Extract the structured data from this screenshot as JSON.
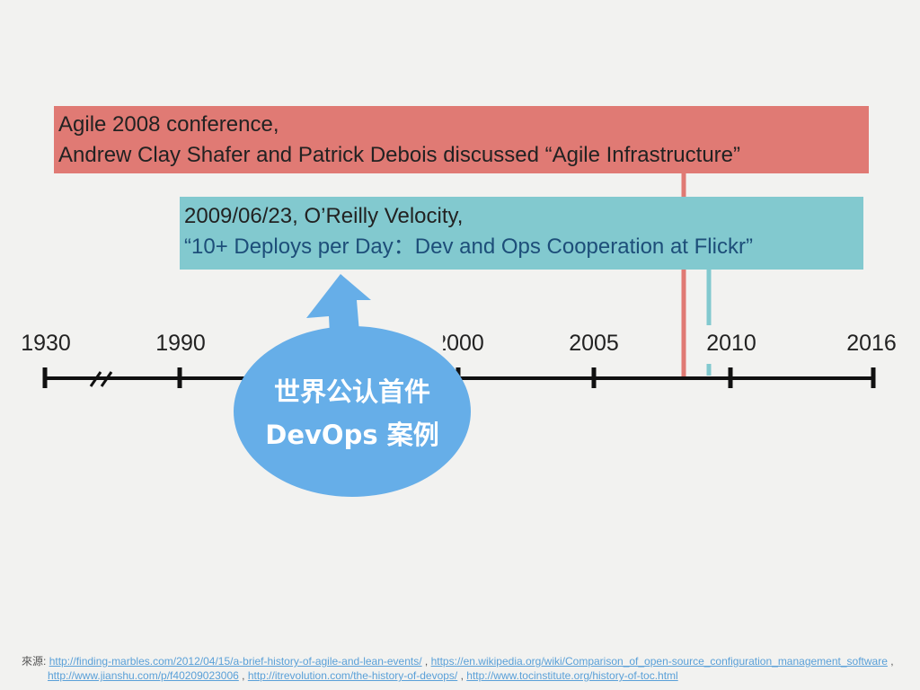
{
  "events": {
    "agile": {
      "line1": "Agile 2008 conference,",
      "line2": "Andrew Clay Shafer and Patrick Debois discussed “Agile Infrastructure”",
      "color": "#e07a74"
    },
    "velocity": {
      "line1": "2009/06/23, O’Reilly Velocity,",
      "line2": "“10+ Deploys per Day：Dev and Ops Cooperation at Flickr”",
      "color": "#82c9cf"
    }
  },
  "timeline": {
    "years": [
      "1930",
      "1990",
      "2000",
      "2005",
      "2010",
      "2016"
    ]
  },
  "callout": {
    "line1": "世界公认首件",
    "line2": "DevOps 案例",
    "color": "#66aee8"
  },
  "sources": {
    "label": "來源:",
    "links": [
      "http://finding-marbles.com/2012/04/15/a-brief-history-of-agile-and-lean-events/",
      "https://en.wikipedia.org/wiki/Comparison_of_open-source_configuration_management_software",
      "http://www.jianshu.com/p/f40209023006",
      "http://itrevolution.com/the-history-of-devops/",
      "http://www.tocinstitute.org/history-of-toc.html"
    ],
    "sep": " , "
  }
}
